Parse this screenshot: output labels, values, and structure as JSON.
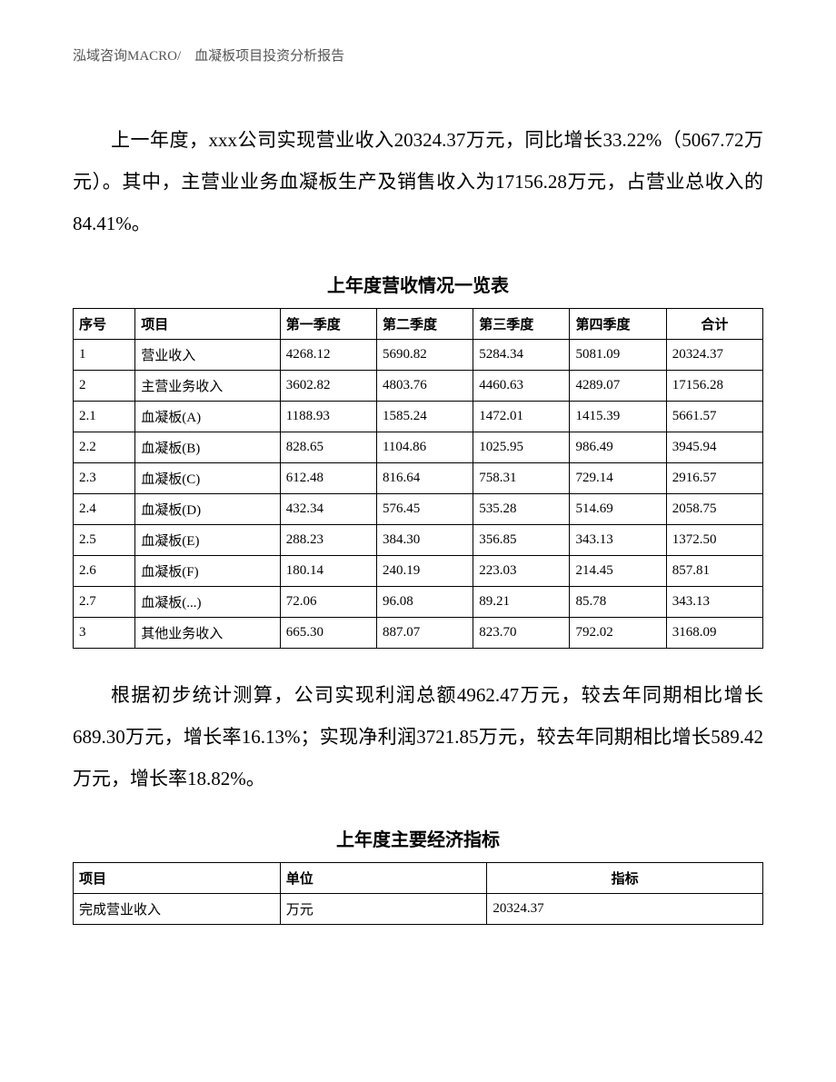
{
  "header_text": "泓域咨询MACRO/　血凝板项目投资分析报告",
  "paragraph1": "上一年度，xxx公司实现营业收入20324.37万元，同比增长33.22%（5067.72万元）。其中，主营业业务血凝板生产及销售收入为17156.28万元，占营业总收入的84.41%。",
  "table1": {
    "title": "上年度营收情况一览表",
    "columns": [
      "序号",
      "项目",
      "第一季度",
      "第二季度",
      "第三季度",
      "第四季度",
      "合计"
    ],
    "col_widths_pct": [
      9,
      21,
      14,
      14,
      14,
      14,
      14
    ],
    "border_color": "#000000",
    "header_fontweight": "bold",
    "body_fontsize": 15,
    "rows": [
      [
        "1",
        "营业收入",
        "4268.12",
        "5690.82",
        "5284.34",
        "5081.09",
        "20324.37"
      ],
      [
        "2",
        "主营业务收入",
        "3602.82",
        "4803.76",
        "4460.63",
        "4289.07",
        "17156.28"
      ],
      [
        "2.1",
        "血凝板(A)",
        "1188.93",
        "1585.24",
        "1472.01",
        "1415.39",
        "5661.57"
      ],
      [
        "2.2",
        "血凝板(B)",
        "828.65",
        "1104.86",
        "1025.95",
        "986.49",
        "3945.94"
      ],
      [
        "2.3",
        "血凝板(C)",
        "612.48",
        "816.64",
        "758.31",
        "729.14",
        "2916.57"
      ],
      [
        "2.4",
        "血凝板(D)",
        "432.34",
        "576.45",
        "535.28",
        "514.69",
        "2058.75"
      ],
      [
        "2.5",
        "血凝板(E)",
        "288.23",
        "384.30",
        "356.85",
        "343.13",
        "1372.50"
      ],
      [
        "2.6",
        "血凝板(F)",
        "180.14",
        "240.19",
        "223.03",
        "214.45",
        "857.81"
      ],
      [
        "2.7",
        "血凝板(...)",
        "72.06",
        "96.08",
        "89.21",
        "85.78",
        "343.13"
      ],
      [
        "3",
        "其他业务收入",
        "665.30",
        "887.07",
        "823.70",
        "792.02",
        "3168.09"
      ]
    ]
  },
  "paragraph2": "根据初步统计测算，公司实现利润总额4962.47万元，较去年同期相比增长689.30万元，增长率16.13%；实现净利润3721.85万元，较去年同期相比增长589.42万元，增长率18.82%。",
  "table2": {
    "title": "上年度主要经济指标",
    "columns": [
      "项目",
      "单位",
      "指标"
    ],
    "col_widths_pct": [
      30,
      30,
      40
    ],
    "border_color": "#000000",
    "header_fontweight": "bold",
    "body_fontsize": 15,
    "header_align": [
      "left",
      "left",
      "center"
    ],
    "rows": [
      [
        "完成营业收入",
        "万元",
        "20324.37"
      ]
    ]
  },
  "style": {
    "page_bg": "#ffffff",
    "text_color": "#000000",
    "header_color": "#555555",
    "body_fontsize": 21,
    "body_lineheight": 2.2,
    "table_fontsize": 15,
    "title_fontsize": 20,
    "font_family": "SimSun"
  }
}
